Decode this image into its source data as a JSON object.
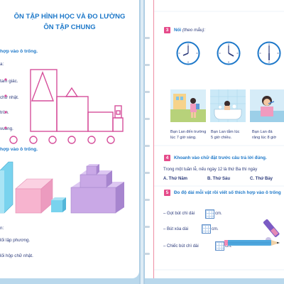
{
  "left": {
    "title_line1": "ÔN TẬP HÌNH HỌC VÀ ĐO LƯỜNG",
    "title_line2": "ÔN TẬP CHUNG",
    "q1_prompt": "hợp vào ô trống.",
    "q1_lines": [
      "a:",
      "tam giác.",
      "chữ nhật.",
      "tròn.",
      "vuông."
    ],
    "q2_prompt": "hợp vào ô trống.",
    "q2_lines": [
      "n:",
      "lối lập phương.",
      "lối hộp chữ nhật."
    ]
  },
  "right": {
    "q3_number": "3",
    "q3_title": "Nối",
    "q3_hint": "(theo mẫu):",
    "captions": [
      [
        "Bạn Lan đến trường",
        "lúc 7 giờ sáng."
      ],
      [
        "Bạn Lan tắm lúc",
        "5 giờ chiều."
      ],
      [
        "Bạn Lan đá",
        "răng lúc 8 giờ"
      ]
    ],
    "q4_number": "4",
    "q4_title": "Khoanh vào chữ đặt trước câu trả lời đúng.",
    "q4_question": "Trong một tuần lễ, nếu ngày 12 là thứ Ba thì ngày",
    "q4_options": [
      "A. Thứ Năm",
      "B. Thứ Sáu",
      "C. Thứ Bảy"
    ],
    "q5_number": "5",
    "q5_title": "Đo độ dài mỗi vật rồi viết số thích hợp vào ô trống",
    "q5_items": [
      {
        "label": "– Gọt bút chì dài",
        "unit": "cm."
      },
      {
        "label": "– Bút xóa dài",
        "unit": "cm."
      },
      {
        "label": "– Chiếc bút chì dài",
        "unit": "cm."
      }
    ]
  },
  "colors": {
    "title_blue": "#1d78c9",
    "shape_pink": "#d64f9b",
    "cube_blue": "#79d3ee",
    "box_pink": "#f7b4cf",
    "box_purple": "#c9a8e6",
    "question_badge": "#e54b8a"
  }
}
